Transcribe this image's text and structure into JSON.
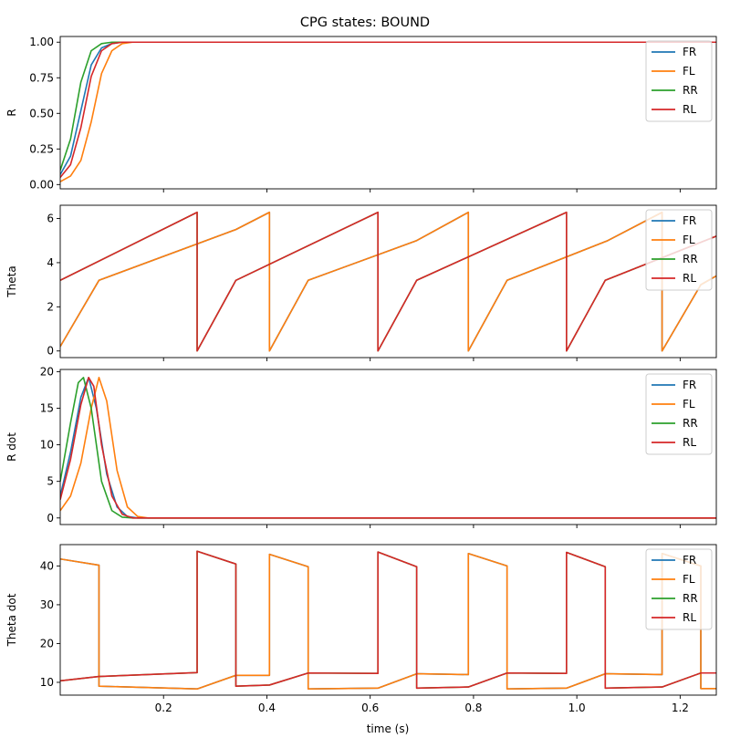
{
  "chart_data": {
    "type": "line",
    "title": "CPG states: BOUND",
    "xlabel": "time (s)",
    "xlim": [
      0.0,
      1.27
    ],
    "x_ticks": [
      0.2,
      0.4,
      0.6,
      0.8,
      1.0,
      1.2
    ],
    "x_tick_labels": [
      "0.2",
      "0.4",
      "0.6",
      "0.8",
      "1.0",
      "1.2"
    ],
    "legend_position": "top-right",
    "grid": false,
    "colors": {
      "FR": "#1f77b4",
      "FL": "#ff7f0e",
      "RR": "#2ca02c",
      "RL": "#d62728"
    },
    "subplots": [
      {
        "id": "R",
        "ylabel": "R",
        "ylim": [
          -0.03,
          1.04
        ],
        "y_ticks": [
          0.0,
          0.25,
          0.5,
          0.75,
          1.0
        ],
        "y_tick_labels": [
          "0.00",
          "0.25",
          "0.50",
          "0.75",
          "1.00"
        ],
        "series": [
          {
            "name": "FR",
            "x": [
              0.0,
              0.02,
              0.04,
              0.06,
              0.08,
              0.1,
              0.12,
              0.14,
              1.27
            ],
            "y": [
              0.07,
              0.2,
              0.52,
              0.84,
              0.96,
              0.99,
              1.0,
              1.0,
              1.0
            ]
          },
          {
            "name": "FL",
            "x": [
              0.0,
              0.02,
              0.04,
              0.06,
              0.08,
              0.1,
              0.12,
              0.14,
              0.16,
              1.27
            ],
            "y": [
              0.02,
              0.06,
              0.17,
              0.44,
              0.78,
              0.94,
              0.99,
              1.0,
              1.0,
              1.0
            ]
          },
          {
            "name": "RR",
            "x": [
              0.0,
              0.02,
              0.04,
              0.06,
              0.08,
              0.1,
              0.12,
              1.27
            ],
            "y": [
              0.1,
              0.32,
              0.72,
              0.94,
              0.99,
              1.0,
              1.0,
              1.0
            ]
          },
          {
            "name": "RL",
            "x": [
              0.0,
              0.02,
              0.04,
              0.06,
              0.08,
              0.1,
              0.12,
              0.14,
              1.27
            ],
            "y": [
              0.05,
              0.14,
              0.4,
              0.76,
              0.94,
              0.99,
              1.0,
              1.0,
              1.0
            ]
          }
        ]
      },
      {
        "id": "Theta",
        "ylabel": "Theta",
        "ylim": [
          -0.3,
          6.6
        ],
        "y_ticks": [
          0,
          2,
          4,
          6
        ],
        "y_tick_labels": [
          "0",
          "2",
          "4",
          "6"
        ],
        "series": [
          {
            "name": "FR",
            "x": [
              0.0,
              0.075,
              0.34,
              0.405,
              0.405,
              0.48,
              0.69,
              0.79,
              0.79,
              0.865,
              1.06,
              1.165,
              1.165,
              1.24,
              1.27
            ],
            "y": [
              0.2,
              3.2,
              5.5,
              6.28,
              0.0,
              3.2,
              5.0,
              6.28,
              0.0,
              3.2,
              5.0,
              6.28,
              0.0,
              3.0,
              3.4
            ]
          },
          {
            "name": "FL",
            "x": [
              0.0,
              0.075,
              0.34,
              0.405,
              0.405,
              0.48,
              0.69,
              0.79,
              0.79,
              0.865,
              1.06,
              1.165,
              1.165,
              1.24,
              1.27
            ],
            "y": [
              0.2,
              3.2,
              5.5,
              6.28,
              0.0,
              3.2,
              5.0,
              6.28,
              0.0,
              3.2,
              5.0,
              6.28,
              0.0,
              3.0,
              3.4
            ]
          },
          {
            "name": "RR",
            "x": [
              0.0,
              0.265,
              0.265,
              0.34,
              0.615,
              0.615,
              0.69,
              0.98,
              0.98,
              1.055,
              1.27
            ],
            "y": [
              3.2,
              6.28,
              0.0,
              3.2,
              6.28,
              0.0,
              3.2,
              6.28,
              0.0,
              3.2,
              5.2
            ]
          },
          {
            "name": "RL",
            "x": [
              0.0,
              0.265,
              0.265,
              0.34,
              0.615,
              0.615,
              0.69,
              0.98,
              0.98,
              1.055,
              1.27
            ],
            "y": [
              3.2,
              6.28,
              0.0,
              3.2,
              6.28,
              0.0,
              3.2,
              6.28,
              0.0,
              3.2,
              5.2
            ]
          }
        ]
      },
      {
        "id": "Rdot",
        "ylabel": "R dot",
        "ylim": [
          -0.9,
          20.3
        ],
        "y_ticks": [
          0,
          5,
          10,
          15,
          20
        ],
        "y_tick_labels": [
          "0",
          "5",
          "10",
          "15",
          "20"
        ],
        "series": [
          {
            "name": "FR",
            "x": [
              0.0,
              0.02,
              0.04,
              0.055,
              0.07,
              0.09,
              0.11,
              0.13,
              0.15,
              1.27
            ],
            "y": [
              3.0,
              9.0,
              16.5,
              19.2,
              15.0,
              6.0,
              1.5,
              0.2,
              0.0,
              0.0
            ]
          },
          {
            "name": "FL",
            "x": [
              0.0,
              0.02,
              0.04,
              0.06,
              0.075,
              0.09,
              0.11,
              0.13,
              0.15,
              0.17,
              1.27
            ],
            "y": [
              1.0,
              3.0,
              7.5,
              15.0,
              19.2,
              16.0,
              6.5,
              1.5,
              0.2,
              0.0,
              0.0
            ]
          },
          {
            "name": "RR",
            "x": [
              0.0,
              0.02,
              0.035,
              0.045,
              0.06,
              0.08,
              0.1,
              0.12,
              0.14,
              1.27
            ],
            "y": [
              5.0,
              13.0,
              18.5,
              19.2,
              15.0,
              5.0,
              1.0,
              0.1,
              0.0,
              0.0
            ]
          },
          {
            "name": "RL",
            "x": [
              0.0,
              0.02,
              0.04,
              0.055,
              0.065,
              0.08,
              0.1,
              0.12,
              0.14,
              1.27
            ],
            "y": [
              2.5,
              8.0,
              15.5,
              19.2,
              18.0,
              10.0,
              3.0,
              0.5,
              0.0,
              0.0
            ]
          }
        ]
      },
      {
        "id": "Thetadot",
        "ylabel": "Theta dot",
        "ylim": [
          6.7,
          45.5
        ],
        "y_ticks": [
          10,
          20,
          30,
          40
        ],
        "y_tick_labels": [
          "10",
          "20",
          "30",
          "40"
        ],
        "series": [
          {
            "name": "FR",
            "x": [
              0.0,
              0.075,
              0.075,
              0.265,
              0.34,
              0.405,
              0.405,
              0.48,
              0.48,
              0.615,
              0.69,
              0.79,
              0.79,
              0.865,
              0.865,
              0.98,
              1.055,
              1.165,
              1.165,
              1.24,
              1.24,
              1.27
            ],
            "y": [
              41.8,
              40.2,
              9.0,
              8.3,
              11.8,
              11.8,
              43.0,
              39.8,
              8.3,
              8.5,
              12.2,
              12.0,
              43.2,
              40.0,
              8.3,
              8.5,
              12.2,
              12.0,
              43.2,
              40.0,
              8.4,
              8.4
            ]
          },
          {
            "name": "FL",
            "x": [
              0.0,
              0.075,
              0.075,
              0.265,
              0.34,
              0.405,
              0.405,
              0.48,
              0.48,
              0.615,
              0.69,
              0.79,
              0.79,
              0.865,
              0.865,
              0.98,
              1.055,
              1.165,
              1.165,
              1.24,
              1.24,
              1.27
            ],
            "y": [
              41.8,
              40.2,
              9.0,
              8.3,
              11.8,
              11.8,
              43.0,
              39.8,
              8.3,
              8.5,
              12.2,
              12.0,
              43.2,
              40.0,
              8.3,
              8.5,
              12.2,
              12.0,
              43.2,
              40.0,
              8.4,
              8.4
            ]
          },
          {
            "name": "RR",
            "x": [
              0.0,
              0.075,
              0.265,
              0.265,
              0.34,
              0.34,
              0.405,
              0.48,
              0.615,
              0.615,
              0.69,
              0.69,
              0.79,
              0.865,
              0.98,
              0.98,
              1.055,
              1.055,
              1.165,
              1.24,
              1.27
            ],
            "y": [
              10.4,
              11.5,
              12.5,
              43.8,
              40.5,
              9.0,
              9.3,
              12.4,
              12.3,
              43.6,
              39.8,
              8.5,
              8.8,
              12.4,
              12.3,
              43.5,
              39.8,
              8.5,
              8.8,
              12.4,
              12.4
            ]
          },
          {
            "name": "RL",
            "x": [
              0.0,
              0.075,
              0.265,
              0.265,
              0.34,
              0.34,
              0.405,
              0.48,
              0.615,
              0.615,
              0.69,
              0.69,
              0.79,
              0.865,
              0.98,
              0.98,
              1.055,
              1.055,
              1.165,
              1.24,
              1.27
            ],
            "y": [
              10.4,
              11.5,
              12.5,
              43.8,
              40.5,
              9.0,
              9.3,
              12.4,
              12.3,
              43.6,
              39.8,
              8.5,
              8.8,
              12.4,
              12.3,
              43.5,
              39.8,
              8.5,
              8.8,
              12.4,
              12.4
            ]
          }
        ]
      }
    ]
  }
}
